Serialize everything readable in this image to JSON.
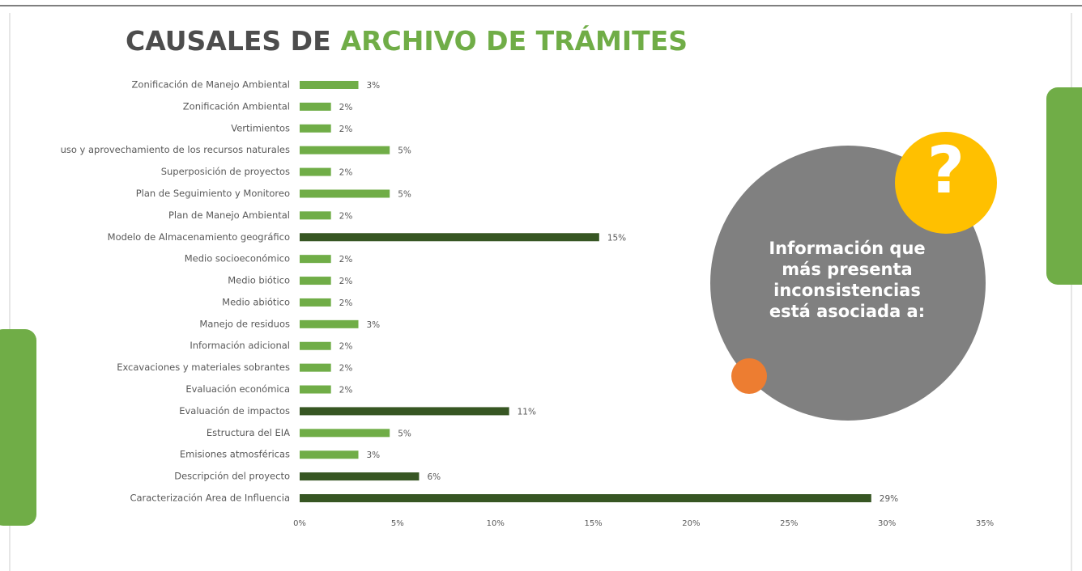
{
  "chart_data": {
    "type": "hbar",
    "title": "CAUSALES DE",
    "title_highlight": "ARCHIVO DE TRÁMITES",
    "categories": [
      "Zonificación de Manejo Ambiental",
      "Zonificación Ambiental",
      "Vertimientos",
      "uso y aprovechamiento de los recursos naturales",
      "Superposición de proyectos",
      "Plan de Seguimiento y Monitoreo",
      "Plan de Manejo Ambiental",
      "Modelo de Almacenamiento geográfico",
      "Medio socioeconómico",
      "Medio biótico",
      "Medio abiótico",
      "Manejo de residuos",
      "Información adicional",
      "Excavaciones y materiales sobrantes",
      "Evaluación económica",
      "Evaluación de impactos",
      "Estructura del EIA",
      "Emisiones atmosféricas",
      "Descripción del proyecto",
      "Caracterización Area de Influencia"
    ],
    "values": [
      3.0,
      1.6,
      1.6,
      4.6,
      1.6,
      4.6,
      1.6,
      15.3,
      1.6,
      1.6,
      1.6,
      3.0,
      1.6,
      1.6,
      1.6,
      10.7,
      4.6,
      3.0,
      6.1,
      29.2
    ],
    "value_labels": [
      "3%",
      "2%",
      "2%",
      "5%",
      "2%",
      "5%",
      "2%",
      "15%",
      "2%",
      "2%",
      "2%",
      "3%",
      "2%",
      "2%",
      "2%",
      "11%",
      "5%",
      "3%",
      "6%",
      "29%"
    ],
    "colors": [
      "#70ad47",
      "#70ad47",
      "#70ad47",
      "#70ad47",
      "#70ad47",
      "#70ad47",
      "#70ad47",
      "#375623",
      "#70ad47",
      "#70ad47",
      "#70ad47",
      "#70ad47",
      "#70ad47",
      "#70ad47",
      "#70ad47",
      "#375623",
      "#70ad47",
      "#70ad47",
      "#375623",
      "#375623"
    ],
    "xlim": [
      0,
      35
    ],
    "xticks": [
      {
        "value": 0,
        "label": "0%"
      },
      {
        "value": 5,
        "label": "5%"
      },
      {
        "value": 10,
        "label": "10%"
      },
      {
        "value": 15,
        "label": "15%"
      },
      {
        "value": 20,
        "label": "20%"
      },
      {
        "value": 25,
        "label": "25%"
      },
      {
        "value": 30,
        "label": "30%"
      },
      {
        "value": 35,
        "label": "35%"
      }
    ],
    "callout": [
      "Información que",
      "más presenta",
      "inconsistencias",
      "está asociada a:"
    ],
    "callout_icon": "?"
  }
}
